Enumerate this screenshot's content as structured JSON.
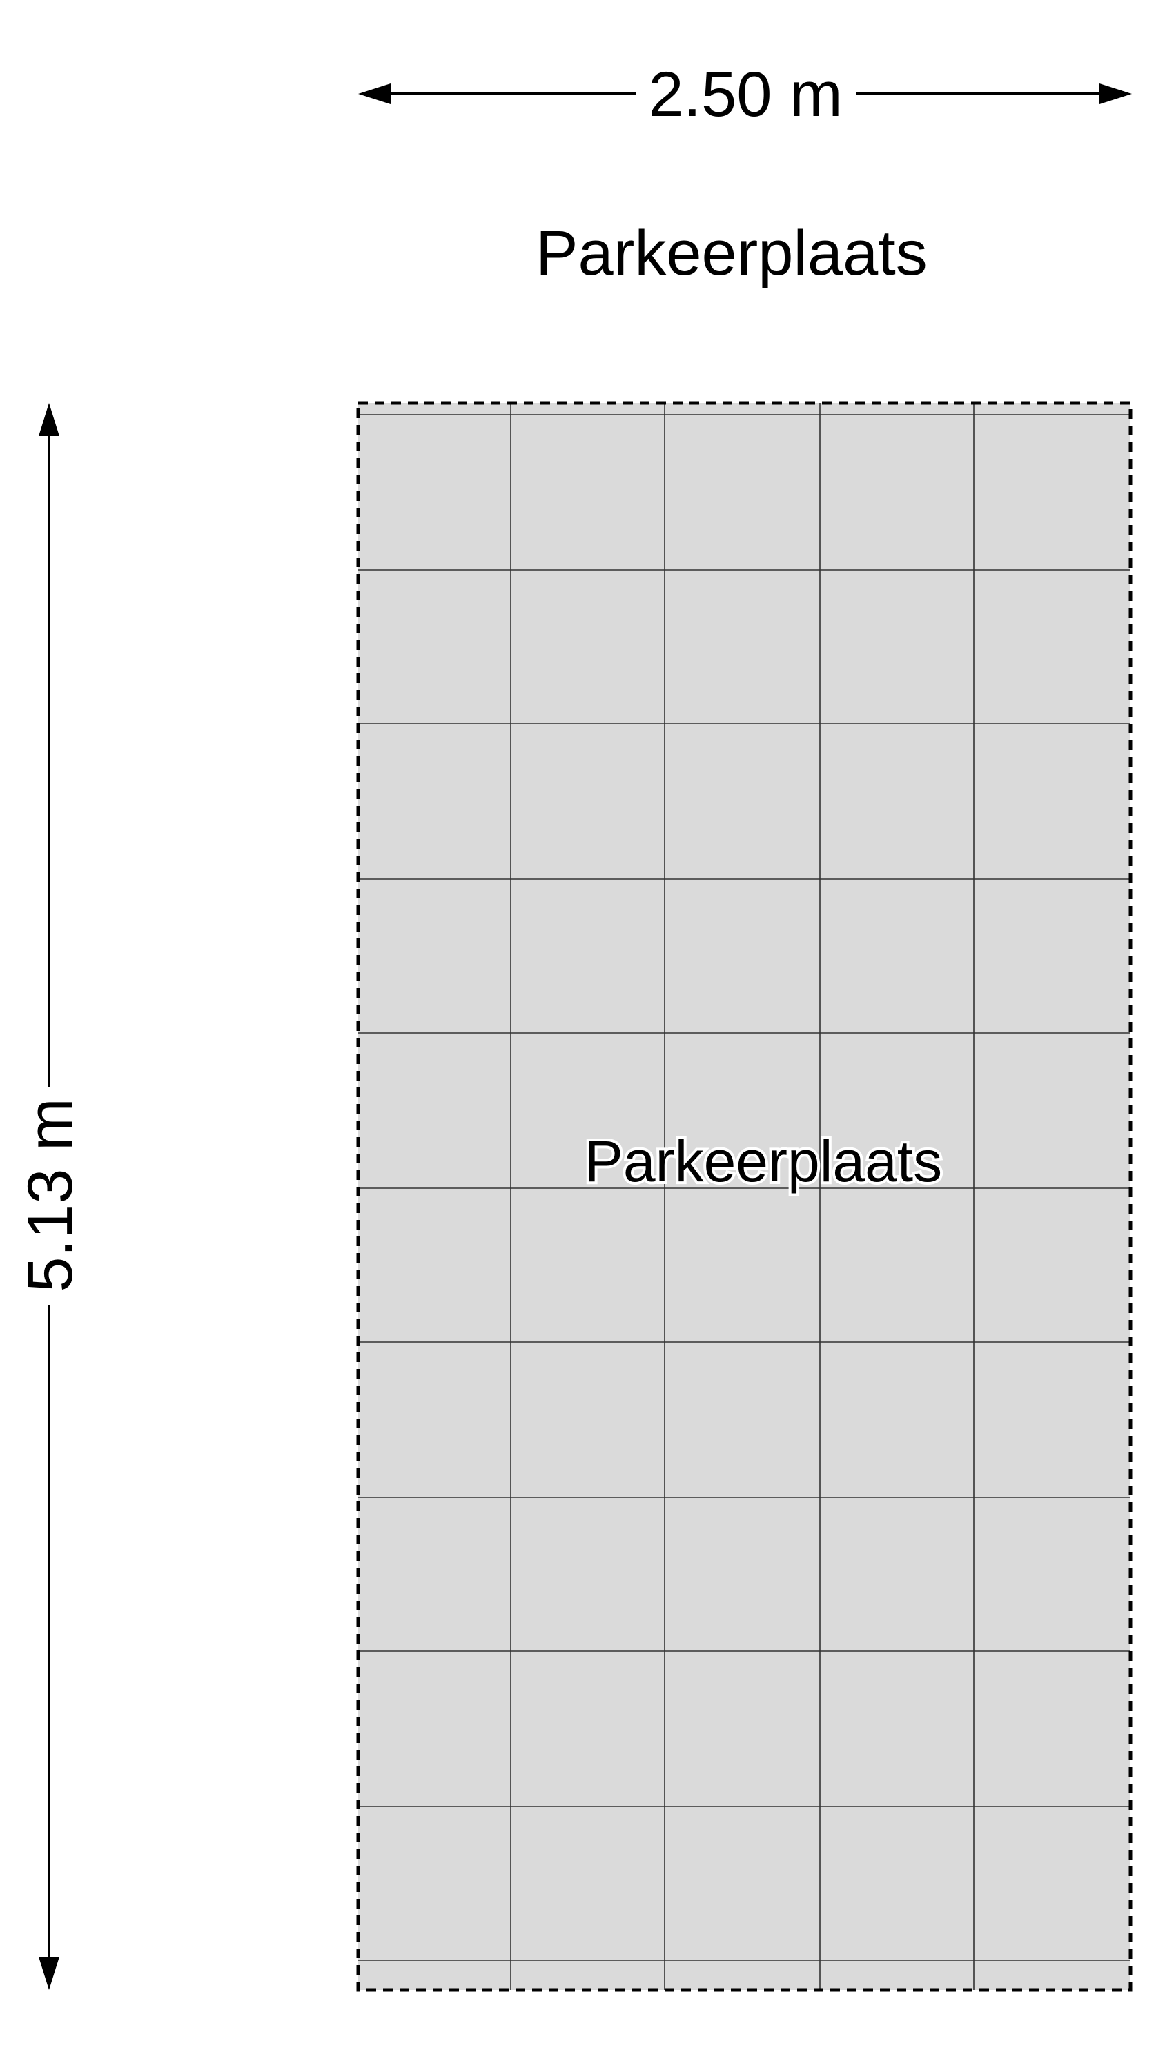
{
  "floorplan": {
    "width_dimension": "2.50 m",
    "height_dimension": "5.13 m",
    "room_title": "Parkeerplaats",
    "room_label": "Parkeerplaats",
    "colors": {
      "floor_fill": "#dadada",
      "lines": "#000000",
      "background": "#ffffff"
    },
    "tile_grid": {
      "columns": 5,
      "rows": 10
    }
  }
}
